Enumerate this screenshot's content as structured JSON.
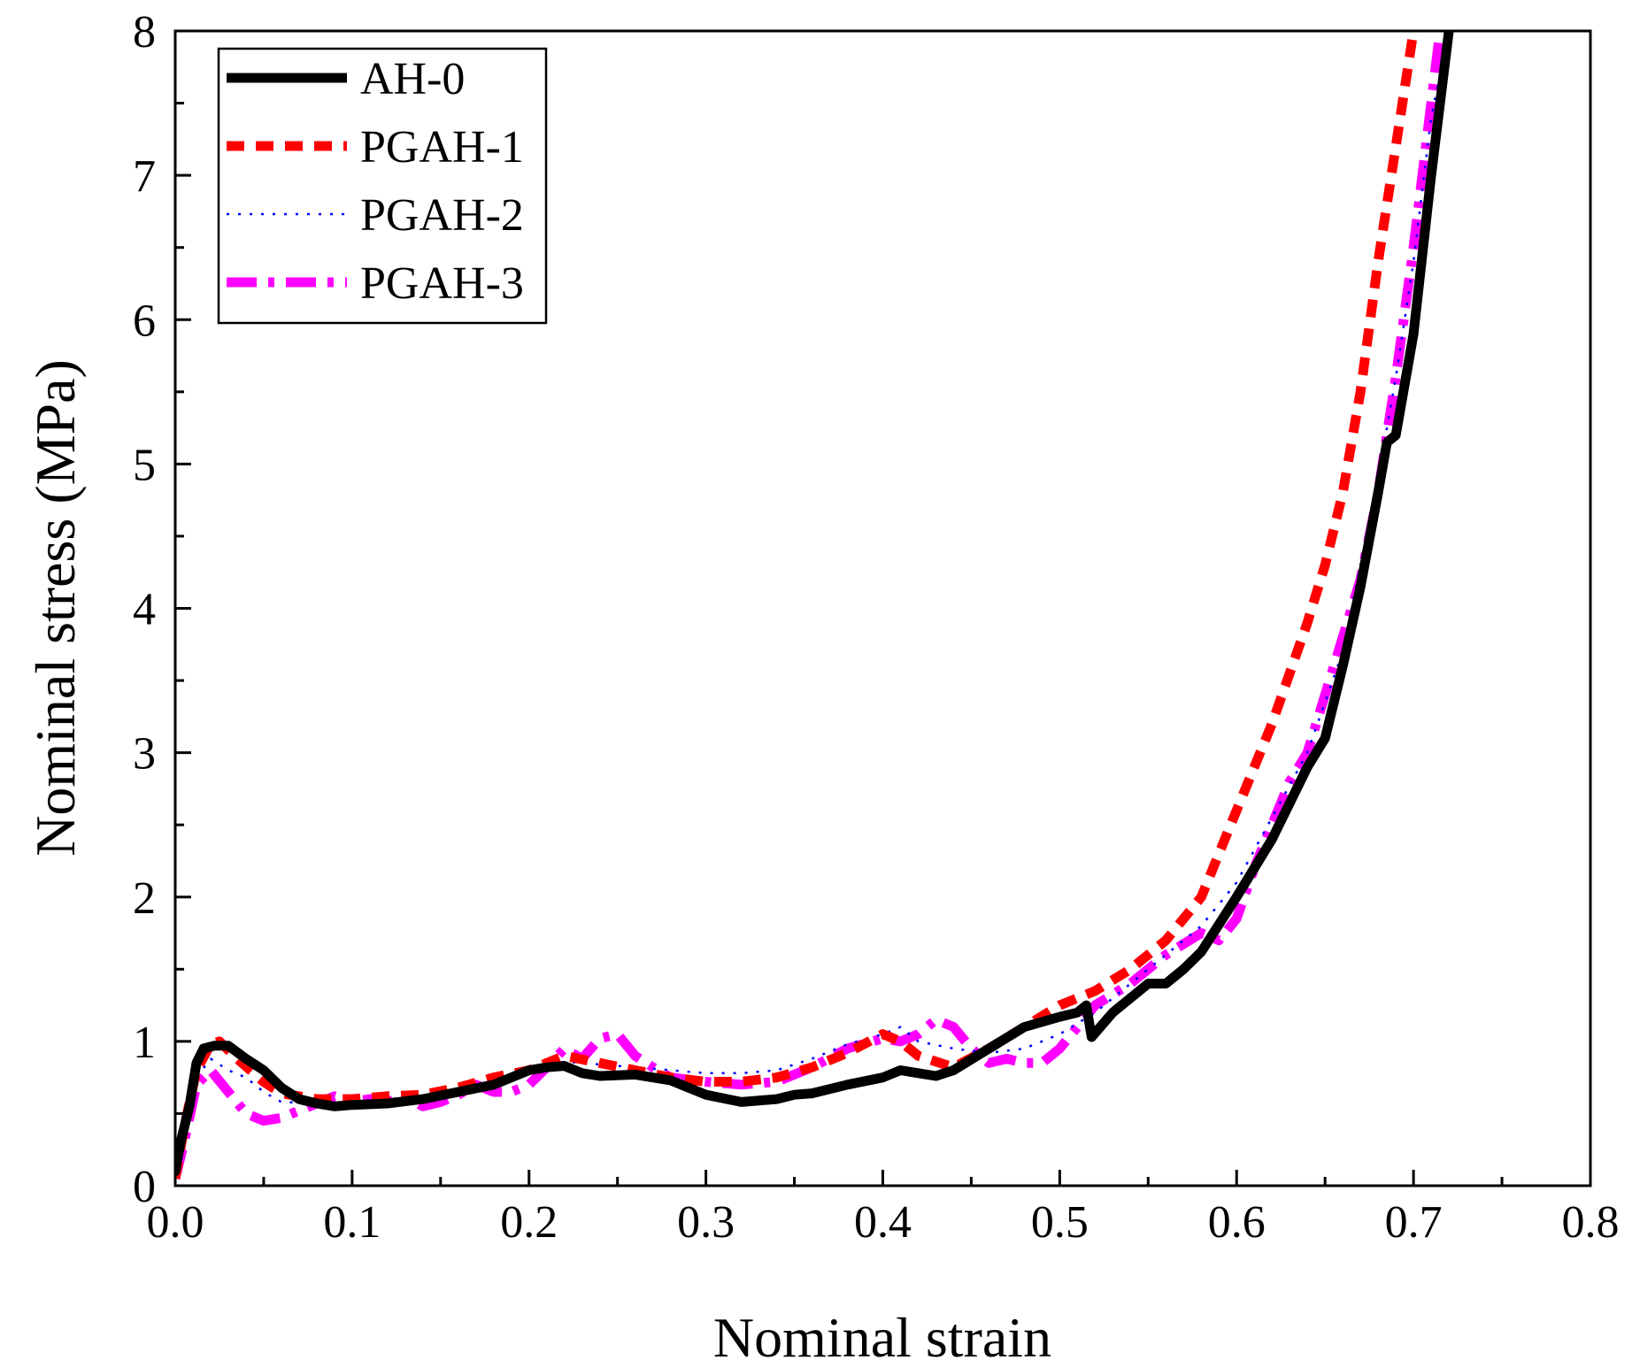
{
  "chart_data": {
    "type": "line",
    "title": "",
    "xlabel": "Nominal strain",
    "ylabel": "Nominal stress (MPa)",
    "xlim": [
      0.0,
      0.8
    ],
    "ylim": [
      0,
      8
    ],
    "grid": false,
    "legend_position": "top-left",
    "x_ticks": [
      {
        "value": 0.0,
        "label": "0.0"
      },
      {
        "value": 0.1,
        "label": "0.1"
      },
      {
        "value": 0.2,
        "label": "0.2"
      },
      {
        "value": 0.3,
        "label": "0.3"
      },
      {
        "value": 0.4,
        "label": "0.4"
      },
      {
        "value": 0.5,
        "label": "0.5"
      },
      {
        "value": 0.6,
        "label": "0.6"
      },
      {
        "value": 0.7,
        "label": "0.7"
      },
      {
        "value": 0.8,
        "label": "0.8"
      }
    ],
    "y_ticks": [
      {
        "value": 0,
        "label": "0"
      },
      {
        "value": 1,
        "label": "1"
      },
      {
        "value": 2,
        "label": "2"
      },
      {
        "value": 3,
        "label": "3"
      },
      {
        "value": 4,
        "label": "4"
      },
      {
        "value": 5,
        "label": "5"
      },
      {
        "value": 6,
        "label": "6"
      },
      {
        "value": 7,
        "label": "7"
      },
      {
        "value": 8,
        "label": "8"
      }
    ],
    "series": [
      {
        "name": "AH-0",
        "color": "#000000",
        "style": "solid",
        "points": [
          [
            0.0,
            0.1
          ],
          [
            0.003,
            0.3
          ],
          [
            0.008,
            0.55
          ],
          [
            0.012,
            0.85
          ],
          [
            0.016,
            0.95
          ],
          [
            0.022,
            0.97
          ],
          [
            0.03,
            0.97
          ],
          [
            0.04,
            0.88
          ],
          [
            0.05,
            0.8
          ],
          [
            0.06,
            0.68
          ],
          [
            0.07,
            0.6
          ],
          [
            0.08,
            0.57
          ],
          [
            0.09,
            0.55
          ],
          [
            0.1,
            0.56
          ],
          [
            0.12,
            0.57
          ],
          [
            0.14,
            0.6
          ],
          [
            0.16,
            0.65
          ],
          [
            0.18,
            0.7
          ],
          [
            0.2,
            0.8
          ],
          [
            0.21,
            0.82
          ],
          [
            0.22,
            0.83
          ],
          [
            0.23,
            0.78
          ],
          [
            0.24,
            0.76
          ],
          [
            0.26,
            0.77
          ],
          [
            0.28,
            0.73
          ],
          [
            0.3,
            0.63
          ],
          [
            0.32,
            0.58
          ],
          [
            0.34,
            0.6
          ],
          [
            0.35,
            0.63
          ],
          [
            0.36,
            0.64
          ],
          [
            0.38,
            0.7
          ],
          [
            0.4,
            0.75
          ],
          [
            0.41,
            0.8
          ],
          [
            0.42,
            0.78
          ],
          [
            0.43,
            0.76
          ],
          [
            0.44,
            0.8
          ],
          [
            0.46,
            0.95
          ],
          [
            0.48,
            1.1
          ],
          [
            0.5,
            1.17
          ],
          [
            0.51,
            1.2
          ],
          [
            0.515,
            1.25
          ],
          [
            0.518,
            1.03
          ],
          [
            0.53,
            1.2
          ],
          [
            0.55,
            1.4
          ],
          [
            0.56,
            1.4
          ],
          [
            0.57,
            1.5
          ],
          [
            0.58,
            1.62
          ],
          [
            0.6,
            2.0
          ],
          [
            0.62,
            2.4
          ],
          [
            0.64,
            2.9
          ],
          [
            0.65,
            3.1
          ],
          [
            0.66,
            3.6
          ],
          [
            0.67,
            4.15
          ],
          [
            0.68,
            4.8
          ],
          [
            0.685,
            5.15
          ],
          [
            0.69,
            5.2
          ],
          [
            0.7,
            5.9
          ],
          [
            0.71,
            7.0
          ],
          [
            0.72,
            8.0
          ]
        ]
      },
      {
        "name": "PGAH-1",
        "color": "#ff0000",
        "style": "dashed",
        "points": [
          [
            0.0,
            0.05
          ],
          [
            0.005,
            0.4
          ],
          [
            0.012,
            0.8
          ],
          [
            0.02,
            0.98
          ],
          [
            0.025,
            1.0
          ],
          [
            0.035,
            0.88
          ],
          [
            0.05,
            0.72
          ],
          [
            0.06,
            0.64
          ],
          [
            0.08,
            0.6
          ],
          [
            0.1,
            0.6
          ],
          [
            0.12,
            0.62
          ],
          [
            0.14,
            0.63
          ],
          [
            0.16,
            0.68
          ],
          [
            0.18,
            0.75
          ],
          [
            0.2,
            0.8
          ],
          [
            0.22,
            0.9
          ],
          [
            0.24,
            0.85
          ],
          [
            0.26,
            0.8
          ],
          [
            0.28,
            0.75
          ],
          [
            0.3,
            0.72
          ],
          [
            0.32,
            0.72
          ],
          [
            0.34,
            0.75
          ],
          [
            0.36,
            0.82
          ],
          [
            0.38,
            0.92
          ],
          [
            0.4,
            1.05
          ],
          [
            0.41,
            1.0
          ],
          [
            0.42,
            0.9
          ],
          [
            0.44,
            0.82
          ],
          [
            0.46,
            0.95
          ],
          [
            0.48,
            1.1
          ],
          [
            0.5,
            1.25
          ],
          [
            0.52,
            1.35
          ],
          [
            0.54,
            1.5
          ],
          [
            0.56,
            1.7
          ],
          [
            0.58,
            2.0
          ],
          [
            0.6,
            2.6
          ],
          [
            0.62,
            3.2
          ],
          [
            0.64,
            3.9
          ],
          [
            0.65,
            4.3
          ],
          [
            0.66,
            4.8
          ],
          [
            0.67,
            5.5
          ],
          [
            0.68,
            6.4
          ],
          [
            0.69,
            7.2
          ],
          [
            0.7,
            8.0
          ]
        ]
      },
      {
        "name": "PGAH-2",
        "color": "#0000ff",
        "style": "dotted",
        "points": [
          [
            0.0,
            0.05
          ],
          [
            0.005,
            0.35
          ],
          [
            0.012,
            0.75
          ],
          [
            0.02,
            0.88
          ],
          [
            0.03,
            0.8
          ],
          [
            0.04,
            0.75
          ],
          [
            0.05,
            0.65
          ],
          [
            0.06,
            0.58
          ],
          [
            0.08,
            0.57
          ],
          [
            0.1,
            0.58
          ],
          [
            0.12,
            0.6
          ],
          [
            0.14,
            0.62
          ],
          [
            0.16,
            0.66
          ],
          [
            0.18,
            0.72
          ],
          [
            0.2,
            0.8
          ],
          [
            0.21,
            0.82
          ],
          [
            0.22,
            0.86
          ],
          [
            0.24,
            0.84
          ],
          [
            0.26,
            0.82
          ],
          [
            0.28,
            0.8
          ],
          [
            0.3,
            0.78
          ],
          [
            0.32,
            0.78
          ],
          [
            0.34,
            0.8
          ],
          [
            0.36,
            0.88
          ],
          [
            0.38,
            0.98
          ],
          [
            0.4,
            1.05
          ],
          [
            0.41,
            1.1
          ],
          [
            0.42,
            1.0
          ],
          [
            0.44,
            0.95
          ],
          [
            0.46,
            0.92
          ],
          [
            0.48,
            0.95
          ],
          [
            0.5,
            1.05
          ],
          [
            0.52,
            1.2
          ],
          [
            0.54,
            1.4
          ],
          [
            0.56,
            1.6
          ],
          [
            0.58,
            1.8
          ],
          [
            0.6,
            2.1
          ],
          [
            0.62,
            2.55
          ],
          [
            0.64,
            3.0
          ],
          [
            0.66,
            3.7
          ],
          [
            0.67,
            4.3
          ],
          [
            0.68,
            4.9
          ],
          [
            0.69,
            5.6
          ],
          [
            0.7,
            6.4
          ],
          [
            0.71,
            7.4
          ],
          [
            0.72,
            8.0
          ]
        ]
      },
      {
        "name": "PGAH-3",
        "color": "#ff00ff",
        "style": "dashdot",
        "points": [
          [
            0.0,
            0.05
          ],
          [
            0.005,
            0.3
          ],
          [
            0.012,
            0.7
          ],
          [
            0.02,
            0.8
          ],
          [
            0.03,
            0.65
          ],
          [
            0.04,
            0.5
          ],
          [
            0.05,
            0.45
          ],
          [
            0.06,
            0.47
          ],
          [
            0.07,
            0.52
          ],
          [
            0.08,
            0.57
          ],
          [
            0.09,
            0.62
          ],
          [
            0.1,
            0.58
          ],
          [
            0.11,
            0.6
          ],
          [
            0.12,
            0.58
          ],
          [
            0.13,
            0.62
          ],
          [
            0.14,
            0.55
          ],
          [
            0.15,
            0.58
          ],
          [
            0.16,
            0.63
          ],
          [
            0.17,
            0.7
          ],
          [
            0.18,
            0.65
          ],
          [
            0.19,
            0.65
          ],
          [
            0.2,
            0.7
          ],
          [
            0.21,
            0.82
          ],
          [
            0.22,
            0.95
          ],
          [
            0.23,
            0.88
          ],
          [
            0.24,
            1.02
          ],
          [
            0.25,
            1.05
          ],
          [
            0.26,
            0.9
          ],
          [
            0.27,
            0.82
          ],
          [
            0.28,
            0.75
          ],
          [
            0.3,
            0.72
          ],
          [
            0.32,
            0.7
          ],
          [
            0.34,
            0.72
          ],
          [
            0.36,
            0.82
          ],
          [
            0.38,
            0.95
          ],
          [
            0.4,
            1.02
          ],
          [
            0.41,
            1.0
          ],
          [
            0.42,
            1.05
          ],
          [
            0.43,
            1.15
          ],
          [
            0.44,
            1.1
          ],
          [
            0.45,
            0.95
          ],
          [
            0.46,
            0.85
          ],
          [
            0.47,
            0.88
          ],
          [
            0.48,
            0.85
          ],
          [
            0.49,
            0.85
          ],
          [
            0.5,
            0.95
          ],
          [
            0.51,
            1.1
          ],
          [
            0.52,
            1.25
          ],
          [
            0.54,
            1.4
          ],
          [
            0.56,
            1.6
          ],
          [
            0.58,
            1.75
          ],
          [
            0.59,
            1.7
          ],
          [
            0.6,
            1.85
          ],
          [
            0.61,
            2.2
          ],
          [
            0.62,
            2.5
          ],
          [
            0.63,
            2.8
          ],
          [
            0.64,
            3.0
          ],
          [
            0.65,
            3.4
          ],
          [
            0.66,
            3.8
          ],
          [
            0.67,
            4.2
          ],
          [
            0.68,
            4.8
          ],
          [
            0.69,
            5.6
          ],
          [
            0.7,
            6.5
          ],
          [
            0.71,
            7.5
          ],
          [
            0.715,
            8.0
          ]
        ]
      }
    ]
  }
}
